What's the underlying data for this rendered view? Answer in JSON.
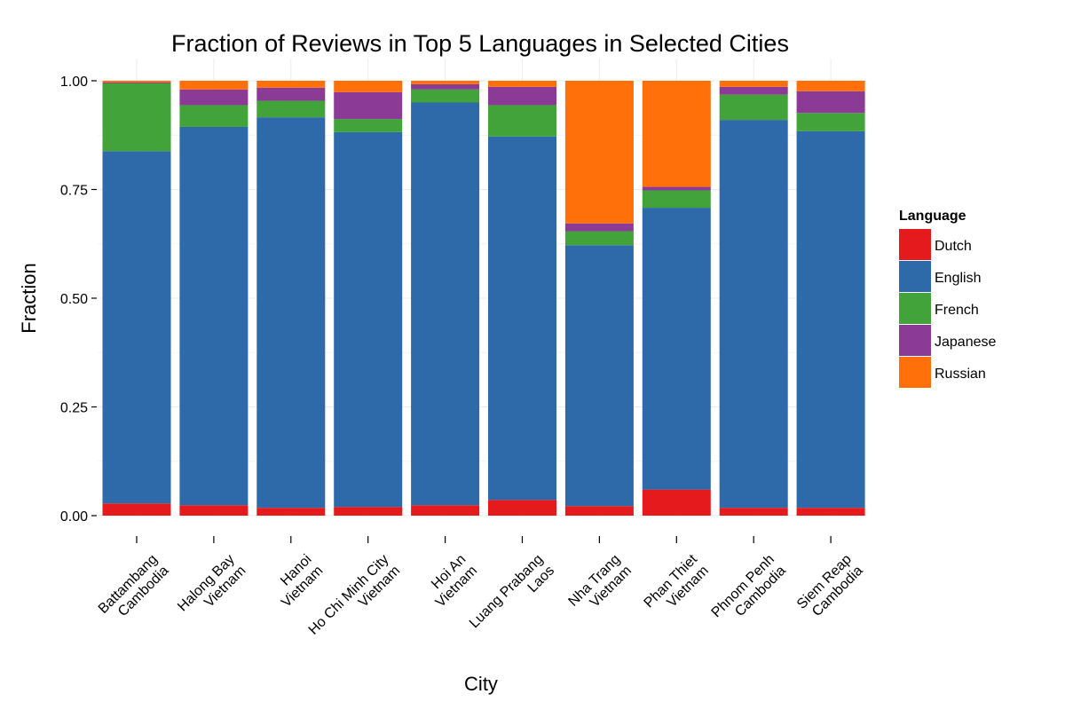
{
  "chart_data": {
    "type": "bar",
    "stacked": true,
    "title": "Fraction of Reviews in Top 5 Languages in Selected Cities",
    "xlabel": "City",
    "ylabel": "Fraction",
    "ylim": [
      0,
      1
    ],
    "yticks": [
      "0.00",
      "0.25",
      "0.50",
      "0.75",
      "1.00"
    ],
    "grid": true,
    "legend_position": "right",
    "legend_title": "Language",
    "categories": [
      [
        "Battambang",
        "Cambodia"
      ],
      [
        "Halong Bay",
        "Vietnam"
      ],
      [
        "Hanoi",
        "Vietnam"
      ],
      [
        "Ho Chi Minh City",
        "Vietnam"
      ],
      [
        "Hoi An",
        "Vietnam"
      ],
      [
        "Luang Prabang",
        "Laos"
      ],
      [
        "Nha Trang",
        "Vietnam"
      ],
      [
        "Phan Thiet",
        "Vietnam"
      ],
      [
        "Phnom Penh",
        "Cambodia"
      ],
      [
        "Siem Reap",
        "Cambodia"
      ]
    ],
    "series": [
      {
        "name": "Dutch",
        "color": "#E41A1C",
        "values": [
          0.028,
          0.024,
          0.018,
          0.02,
          0.024,
          0.036,
          0.022,
          0.06,
          0.018,
          0.018
        ]
      },
      {
        "name": "English",
        "color": "#2E6AAA",
        "values": [
          0.81,
          0.87,
          0.898,
          0.862,
          0.926,
          0.836,
          0.6,
          0.648,
          0.892,
          0.866
        ]
      },
      {
        "name": "French",
        "color": "#41A33A",
        "values": [
          0.156,
          0.05,
          0.038,
          0.03,
          0.03,
          0.072,
          0.032,
          0.04,
          0.058,
          0.042
        ]
      },
      {
        "name": "Japanese",
        "color": "#8B3B96",
        "values": [
          0.002,
          0.036,
          0.03,
          0.062,
          0.012,
          0.042,
          0.018,
          0.008,
          0.018,
          0.05
        ]
      },
      {
        "name": "Russian",
        "color": "#FF6F0A",
        "values": [
          0.004,
          0.02,
          0.016,
          0.026,
          0.008,
          0.014,
          0.328,
          0.244,
          0.014,
          0.024
        ]
      }
    ]
  }
}
